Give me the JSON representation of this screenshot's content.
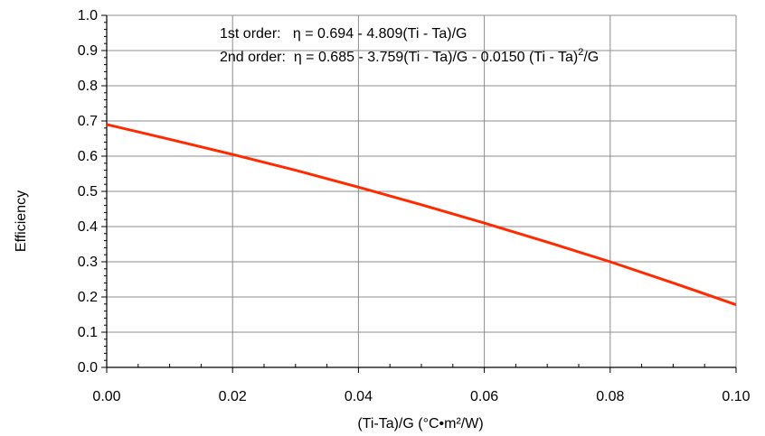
{
  "chart_data": {
    "type": "line",
    "title": "",
    "xlabel": "(Ti-Ta)/G  (°C•m²/W)",
    "ylabel": "Efficiency",
    "xlim": [
      0,
      0.1
    ],
    "ylim": [
      0,
      1.0
    ],
    "x_ticks": [
      "0.00",
      "0.02",
      "0.04",
      "0.06",
      "0.08",
      "0.10"
    ],
    "y_ticks": [
      "0.0",
      "0.1",
      "0.2",
      "0.3",
      "0.4",
      "0.5",
      "0.6",
      "0.7",
      "0.8",
      "0.9",
      "1.0"
    ],
    "grid": true,
    "series": [
      {
        "color": "#ff2a00",
        "x": [
          0,
          0.01,
          0.02,
          0.03,
          0.04,
          0.05,
          0.06,
          0.07,
          0.08,
          0.09,
          0.1
        ],
        "y": [
          0.69,
          0.648,
          0.605,
          0.56,
          0.512,
          0.462,
          0.41,
          0.356,
          0.3,
          0.24,
          0.178
        ]
      }
    ],
    "annotations": {
      "first_order_prefix": "1st order:   η = 0.694 - 4.809(Ti - Ta)/G",
      "second_order_prefix": "2nd order:  η = 0.685 - 3.759(Ti - Ta)/G - 0.0150 (Ti - Ta)",
      "second_order_sup": "2",
      "second_order_suffix": "/G"
    }
  }
}
